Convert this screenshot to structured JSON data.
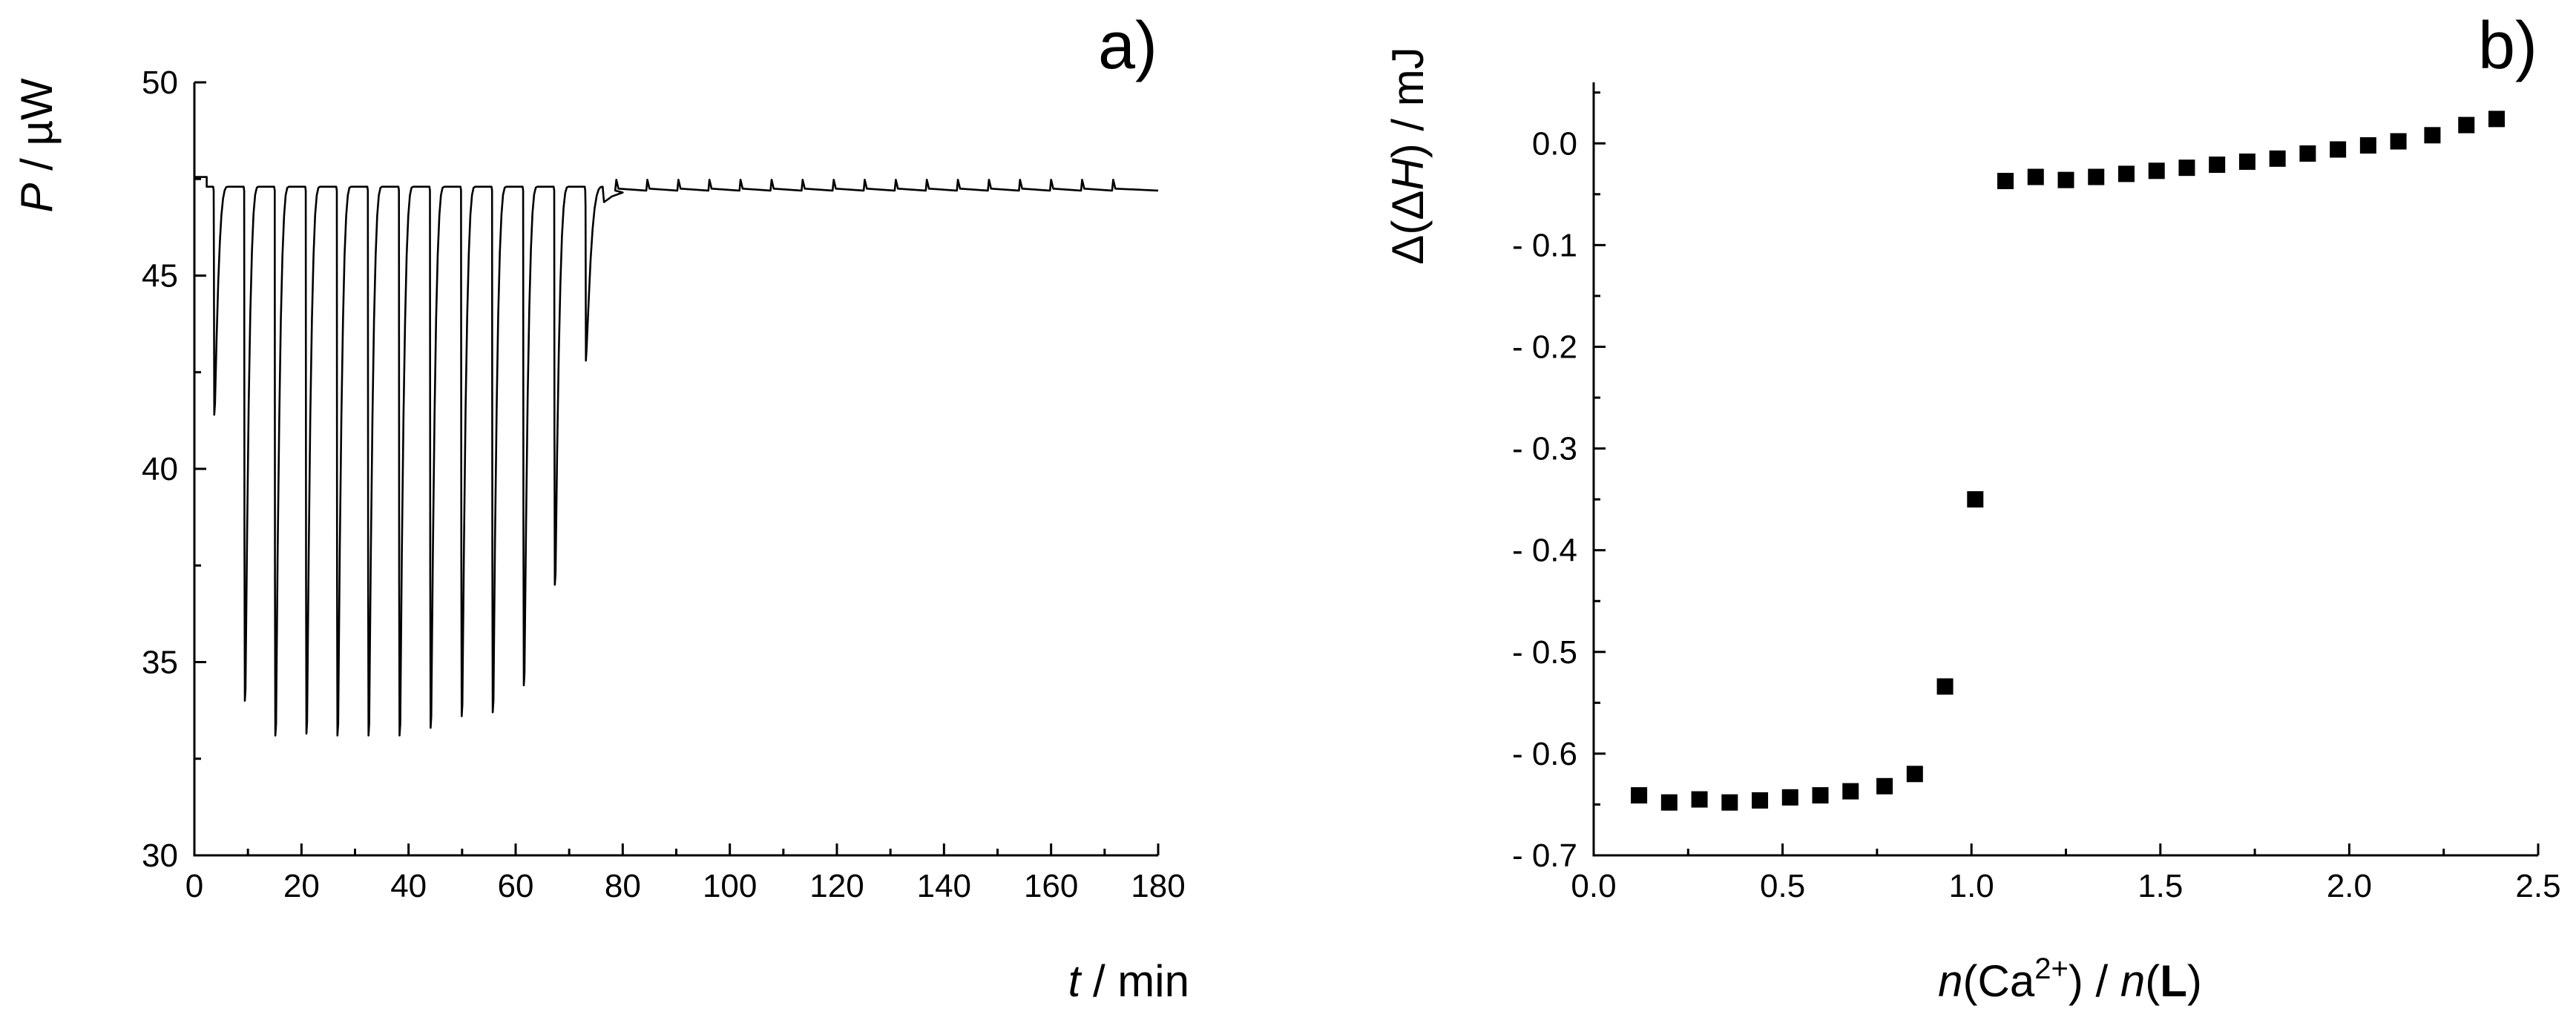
{
  "chart_data": [
    {
      "type": "line",
      "panel_label": "a)",
      "title": "",
      "xlabel_italic": "t",
      "xlabel_rest": " / min",
      "ylabel_italic": "P",
      "ylabel_rest": " / µW",
      "xlim": [
        0,
        180
      ],
      "ylim": [
        30,
        50
      ],
      "xticks": [
        0,
        20,
        40,
        60,
        80,
        100,
        120,
        140,
        160,
        180
      ],
      "yticks": [
        30,
        35,
        40,
        45,
        50
      ],
      "series": [
        {
          "name": "power trace",
          "baseline_initial": 47.55,
          "baseline_final": 47.2,
          "initial_step_time": 2.3,
          "settle_time": 75,
          "injections": [
            {
              "t": 3.6,
              "min": 41.4
            },
            {
              "t": 9.3,
              "min": 34.0
            },
            {
              "t": 15.0,
              "min": 33.1
            },
            {
              "t": 20.8,
              "min": 33.15
            },
            {
              "t": 26.6,
              "min": 33.1
            },
            {
              "t": 32.4,
              "min": 33.1
            },
            {
              "t": 38.2,
              "min": 33.1
            },
            {
              "t": 44.0,
              "min": 33.3
            },
            {
              "t": 49.8,
              "min": 33.6
            },
            {
              "t": 55.6,
              "min": 33.7
            },
            {
              "t": 61.4,
              "min": 34.4
            },
            {
              "t": 67.2,
              "min": 37.0
            },
            {
              "t": 73.0,
              "min": 42.8
            }
          ],
          "late_spike_times": [
            78.8,
            84.6,
            90.4,
            96.2,
            102,
            107.8,
            113.6,
            119.4,
            125.2,
            131,
            136.8,
            142.6,
            148.4,
            154.2,
            160,
            165.8,
            171.6
          ]
        }
      ]
    },
    {
      "type": "scatter",
      "panel_label": "b)",
      "title": "",
      "xlabel_parts": [
        "n",
        "(Ca",
        "2+",
        ") / ",
        "n",
        "(",
        "L",
        ")"
      ],
      "ylabel_parts": [
        "Δ(Δ",
        "H",
        ") / mJ"
      ],
      "xlim": [
        0.0,
        2.5
      ],
      "ylim": [
        -0.7,
        0.06
      ],
      "xticks": [
        0.0,
        0.5,
        1.0,
        1.5,
        2.0,
        2.5
      ],
      "xtick_labels": [
        "0.0",
        "0.5",
        "1.0",
        "1.5",
        "2.0",
        "2.5"
      ],
      "yticks": [
        0.0,
        -0.1,
        -0.2,
        -0.3,
        -0.4,
        -0.5,
        -0.6,
        -0.7
      ],
      "ytick_labels": [
        "0.0",
        "- 0.1",
        "- 0.2",
        "- 0.3",
        "- 0.4",
        "- 0.5",
        "- 0.6",
        "- 0.7"
      ],
      "series": [
        {
          "name": "Δ(ΔH)",
          "x": [
            0.12,
            0.2,
            0.28,
            0.36,
            0.44,
            0.52,
            0.6,
            0.68,
            0.77,
            0.85,
            0.93,
            1.01,
            1.09,
            1.17,
            1.25,
            1.33,
            1.41,
            1.49,
            1.57,
            1.65,
            1.73,
            1.81,
            1.89,
            1.97,
            2.05,
            2.13,
            2.22,
            2.31,
            2.39
          ],
          "y": [
            -0.641,
            -0.648,
            -0.645,
            -0.648,
            -0.646,
            -0.643,
            -0.641,
            -0.637,
            -0.632,
            -0.62,
            -0.534,
            -0.35,
            -0.037,
            -0.033,
            -0.036,
            -0.033,
            -0.03,
            -0.027,
            -0.024,
            -0.021,
            -0.018,
            -0.015,
            -0.01,
            -0.006,
            -0.002,
            0.002,
            0.008,
            0.018,
            0.024
          ]
        }
      ]
    }
  ]
}
